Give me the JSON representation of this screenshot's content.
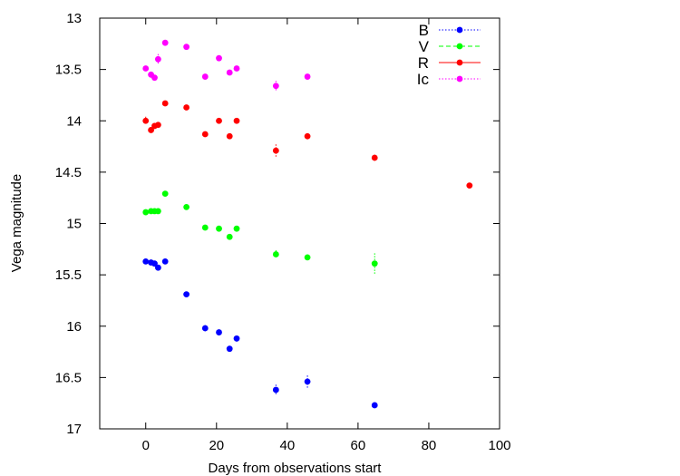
{
  "chart_data": {
    "type": "scatter",
    "title": "",
    "xlabel": "Days from observations start",
    "ylabel": "Vega magnitude",
    "xlim": [
      -13,
      100
    ],
    "ylim": [
      13,
      17
    ],
    "y_inverted": true,
    "xticks": [
      0,
      20,
      40,
      60,
      80,
      100
    ],
    "xtick_labels": [
      "0",
      "20",
      "40",
      "60",
      "80",
      "100"
    ],
    "yticks": [
      13,
      13.5,
      14,
      14.5,
      15,
      15.5,
      16,
      16.5,
      17
    ],
    "ytick_labels": [
      "13",
      "13.5",
      "14",
      "14.5",
      "15",
      "15.5",
      "16",
      "16.5",
      "17"
    ],
    "grid": false,
    "legend_position": "top-right",
    "series": [
      {
        "name": "B",
        "color": "#0000ff",
        "points": [
          {
            "x": 0,
            "y": 15.37,
            "err": 0.02
          },
          {
            "x": 1.5,
            "y": 15.38,
            "err": 0.02
          },
          {
            "x": 2.5,
            "y": 15.39,
            "err": 0.02
          },
          {
            "x": 3.5,
            "y": 15.43,
            "err": 0.02
          },
          {
            "x": 5.5,
            "y": 15.37,
            "err": 0.02
          },
          {
            "x": 11.5,
            "y": 15.69,
            "err": 0.02
          },
          {
            "x": 16.8,
            "y": 16.02,
            "err": 0.03
          },
          {
            "x": 20.7,
            "y": 16.06,
            "err": 0.02
          },
          {
            "x": 23.7,
            "y": 16.22,
            "err": 0.02
          },
          {
            "x": 25.7,
            "y": 16.12,
            "err": 0.03
          },
          {
            "x": 36.8,
            "y": 16.62,
            "err": 0.05
          },
          {
            "x": 45.7,
            "y": 16.54,
            "err": 0.06
          },
          {
            "x": 64.7,
            "y": 16.77,
            "err": 0.02
          }
        ]
      },
      {
        "name": "V",
        "color": "#00ff00",
        "points": [
          {
            "x": 0,
            "y": 14.89,
            "err": 0.02
          },
          {
            "x": 1.5,
            "y": 14.88,
            "err": 0.02
          },
          {
            "x": 2.5,
            "y": 14.88,
            "err": 0.02
          },
          {
            "x": 3.5,
            "y": 14.88,
            "err": 0.02
          },
          {
            "x": 5.5,
            "y": 14.71,
            "err": 0.02
          },
          {
            "x": 11.5,
            "y": 14.84,
            "err": 0.02
          },
          {
            "x": 16.8,
            "y": 15.04,
            "err": 0.02
          },
          {
            "x": 20.7,
            "y": 15.05,
            "err": 0.02
          },
          {
            "x": 23.7,
            "y": 15.13,
            "err": 0.02
          },
          {
            "x": 25.7,
            "y": 15.05,
            "err": 0.02
          },
          {
            "x": 36.8,
            "y": 15.3,
            "err": 0.04
          },
          {
            "x": 45.7,
            "y": 15.33,
            "err": 0.02
          },
          {
            "x": 64.7,
            "y": 15.39,
            "err": 0.1
          }
        ]
      },
      {
        "name": "R",
        "color": "#ff0000",
        "points": [
          {
            "x": 0,
            "y": 14.0,
            "err": 0.04
          },
          {
            "x": 1.5,
            "y": 14.09,
            "err": 0.02
          },
          {
            "x": 2.5,
            "y": 14.05,
            "err": 0.02
          },
          {
            "x": 3.5,
            "y": 14.04,
            "err": 0.02
          },
          {
            "x": 5.5,
            "y": 13.83,
            "err": 0.02
          },
          {
            "x": 11.5,
            "y": 13.87,
            "err": 0.02
          },
          {
            "x": 16.8,
            "y": 14.13,
            "err": 0.02
          },
          {
            "x": 20.7,
            "y": 14.0,
            "err": 0.02
          },
          {
            "x": 23.7,
            "y": 14.15,
            "err": 0.02
          },
          {
            "x": 25.7,
            "y": 14.0,
            "err": 0.02
          },
          {
            "x": 36.8,
            "y": 14.29,
            "err": 0.06
          },
          {
            "x": 45.7,
            "y": 14.15,
            "err": 0.03
          },
          {
            "x": 64.7,
            "y": 14.36,
            "err": 0.03
          },
          {
            "x": 91.5,
            "y": 14.63,
            "err": 0.02
          }
        ]
      },
      {
        "name": "Ic",
        "color": "#ff00ff",
        "points": [
          {
            "x": 0,
            "y": 13.49,
            "err": 0.02
          },
          {
            "x": 1.5,
            "y": 13.55,
            "err": 0.02
          },
          {
            "x": 2.5,
            "y": 13.58,
            "err": 0.02
          },
          {
            "x": 3.5,
            "y": 13.4,
            "err": 0.05
          },
          {
            "x": 5.5,
            "y": 13.24,
            "err": 0.02
          },
          {
            "x": 11.5,
            "y": 13.28,
            "err": 0.02
          },
          {
            "x": 16.8,
            "y": 13.57,
            "err": 0.02
          },
          {
            "x": 20.7,
            "y": 13.39,
            "err": 0.02
          },
          {
            "x": 23.7,
            "y": 13.53,
            "err": 0.02
          },
          {
            "x": 25.7,
            "y": 13.49,
            "err": 0.02
          },
          {
            "x": 36.8,
            "y": 13.66,
            "err": 0.05
          },
          {
            "x": 45.7,
            "y": 13.57,
            "err": 0.02
          }
        ]
      }
    ],
    "legend": [
      {
        "label": "B",
        "color": "#0000ff",
        "line": "dotted"
      },
      {
        "label": "V",
        "color": "#00ff00",
        "line": "dashed"
      },
      {
        "label": "R",
        "color": "#ff0000",
        "line": "solid"
      },
      {
        "label": "Ic",
        "color": "#ff00ff",
        "line": "dotted"
      }
    ]
  }
}
